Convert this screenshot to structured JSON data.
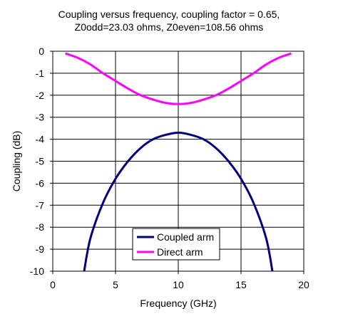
{
  "chart_data": {
    "type": "line",
    "title_line1": "Coupling versus frequency, coupling factor = 0.65,",
    "title_line2": "Z0odd=23.03 ohms, Z0even=108.56 ohms",
    "xlabel": "Frequency (GHz)",
    "ylabel": "Coupling (dB)",
    "xlim": [
      0,
      20
    ],
    "ylim": [
      -10,
      0
    ],
    "xticks": [
      "0",
      "5",
      "10",
      "15",
      "20"
    ],
    "yticks": [
      "0",
      "-1",
      "-2",
      "-3",
      "-4",
      "-5",
      "-6",
      "-7",
      "-8",
      "-9",
      "-10"
    ],
    "grid": "vertical and horizontal major gridlines",
    "legend_position": "bottom-center",
    "series": [
      {
        "name": "Coupled arm",
        "color": "#000080",
        "x": [
          2.5,
          3,
          4,
          5,
          6,
          7,
          8,
          9,
          10,
          11,
          12,
          13,
          14,
          15,
          16,
          17,
          17.5
        ],
        "y": [
          -10.0,
          -8.5,
          -6.9,
          -5.8,
          -5.0,
          -4.4,
          -4.0,
          -3.8,
          -3.7,
          -3.8,
          -4.0,
          -4.4,
          -5.0,
          -5.8,
          -6.9,
          -8.5,
          -10.0
        ]
      },
      {
        "name": "Direct arm",
        "color": "#FF00FF",
        "x": [
          1,
          2,
          3,
          4,
          5,
          6,
          7,
          8,
          9,
          10,
          11,
          12,
          13,
          14,
          15,
          16,
          17,
          18,
          19
        ],
        "y": [
          -0.1,
          -0.3,
          -0.6,
          -1.0,
          -1.35,
          -1.7,
          -2.0,
          -2.2,
          -2.35,
          -2.4,
          -2.35,
          -2.2,
          -2.0,
          -1.7,
          -1.35,
          -1.0,
          -0.6,
          -0.3,
          -0.1
        ]
      }
    ]
  }
}
